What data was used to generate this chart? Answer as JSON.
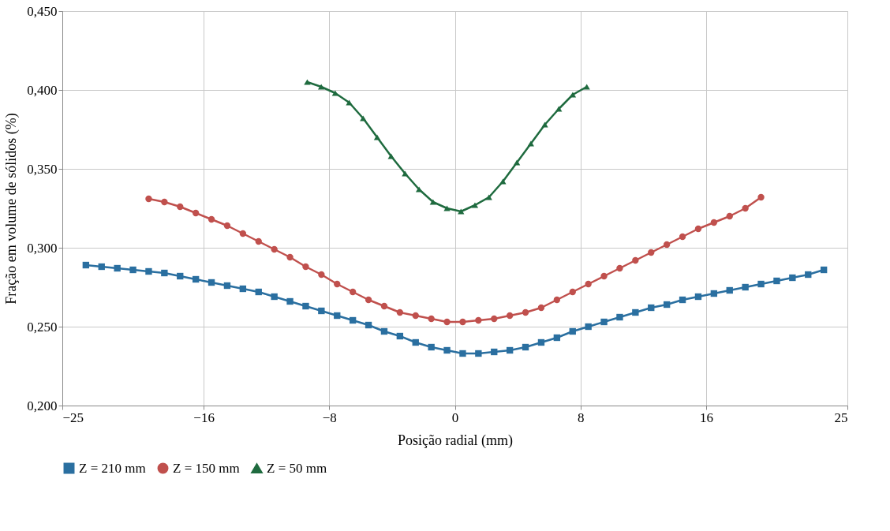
{
  "chart_data": {
    "type": "line",
    "xlabel": "Posição radial (mm)",
    "ylabel": "Fração em volume  de sólidos  (%)",
    "xlim": [
      -25,
      25
    ],
    "xticks": [
      -25,
      -16,
      -8,
      0,
      8,
      16,
      25
    ],
    "ylim": [
      0.2,
      0.45
    ],
    "yticks": [
      {
        "value": 0.2,
        "label": "0,200"
      },
      {
        "value": 0.25,
        "label": "0,250"
      },
      {
        "value": 0.3,
        "label": "0,300"
      },
      {
        "value": 0.35,
        "label": "0,350"
      },
      {
        "value": 0.4,
        "label": "0,400"
      },
      {
        "value": 0.45,
        "label": "0,450"
      }
    ],
    "grid": true,
    "legend": "bottom",
    "line_style": "solid",
    "series": [
      {
        "name": "Z = 210 mm",
        "color": "#2a6fa0",
        "marker": "square",
        "x": [
          -23.5,
          -22.5,
          -21.5,
          -20.5,
          -19.5,
          -18.5,
          -17.5,
          -16.5,
          -15.5,
          -14.5,
          -13.5,
          -12.5,
          -11.5,
          -10.5,
          -9.5,
          -8.5,
          -7.5,
          -6.5,
          -5.5,
          -4.5,
          -3.5,
          -2.5,
          -1.5,
          -0.5,
          0.5,
          1.5,
          2.5,
          3.5,
          4.5,
          5.5,
          6.5,
          7.5,
          8.5,
          9.5,
          10.5,
          11.5,
          12.5,
          13.5,
          14.5,
          15.5,
          16.5,
          17.5,
          18.5,
          19.5,
          20.5,
          21.5,
          22.5,
          23.5
        ],
        "values": [
          0.289,
          0.288,
          0.287,
          0.286,
          0.285,
          0.284,
          0.282,
          0.28,
          0.278,
          0.276,
          0.274,
          0.272,
          0.269,
          0.266,
          0.263,
          0.26,
          0.257,
          0.254,
          0.251,
          0.247,
          0.244,
          0.24,
          0.237,
          0.235,
          0.233,
          0.233,
          0.234,
          0.235,
          0.237,
          0.24,
          0.243,
          0.247,
          0.25,
          0.253,
          0.256,
          0.259,
          0.262,
          0.264,
          0.267,
          0.269,
          0.271,
          0.273,
          0.275,
          0.277,
          0.279,
          0.281,
          0.283,
          0.286
        ]
      },
      {
        "name": "Z = 150 mm",
        "color": "#c0504d",
        "marker": "circle",
        "x": [
          -19.5,
          -18.5,
          -17.5,
          -16.5,
          -15.5,
          -14.5,
          -13.5,
          -12.5,
          -11.5,
          -10.5,
          -9.5,
          -8.5,
          -7.5,
          -6.5,
          -5.5,
          -4.5,
          -3.5,
          -2.5,
          -1.5,
          -0.5,
          0.5,
          1.5,
          2.5,
          3.5,
          4.5,
          5.5,
          6.5,
          7.5,
          8.5,
          9.5,
          10.5,
          11.5,
          12.5,
          13.5,
          14.5,
          15.5,
          16.5,
          17.5,
          18.5,
          19.5
        ],
        "values": [
          0.331,
          0.329,
          0.326,
          0.322,
          0.318,
          0.314,
          0.309,
          0.304,
          0.299,
          0.294,
          0.288,
          0.283,
          0.277,
          0.272,
          0.267,
          0.263,
          0.259,
          0.257,
          0.255,
          0.253,
          0.253,
          0.254,
          0.255,
          0.257,
          0.259,
          0.262,
          0.267,
          0.272,
          0.277,
          0.282,
          0.287,
          0.292,
          0.297,
          0.302,
          0.307,
          0.312,
          0.316,
          0.32,
          0.325,
          0.332
        ]
      },
      {
        "name": "Z = 50 mm",
        "color": "#1f6b3f",
        "marker": "triangle",
        "x": [
          -9.4,
          -8.51,
          -7.62,
          -6.73,
          -5.84,
          -4.95,
          -4.06,
          -3.17,
          -2.28,
          -1.39,
          -0.5,
          0.39,
          1.28,
          2.17,
          3.06,
          3.95,
          4.84,
          5.73,
          6.62,
          7.51,
          8.4
        ],
        "values": [
          0.405,
          0.402,
          0.398,
          0.392,
          0.382,
          0.37,
          0.358,
          0.347,
          0.337,
          0.329,
          0.325,
          0.323,
          0.327,
          0.332,
          0.342,
          0.354,
          0.366,
          0.378,
          0.388,
          0.397,
          0.402
        ]
      }
    ]
  }
}
